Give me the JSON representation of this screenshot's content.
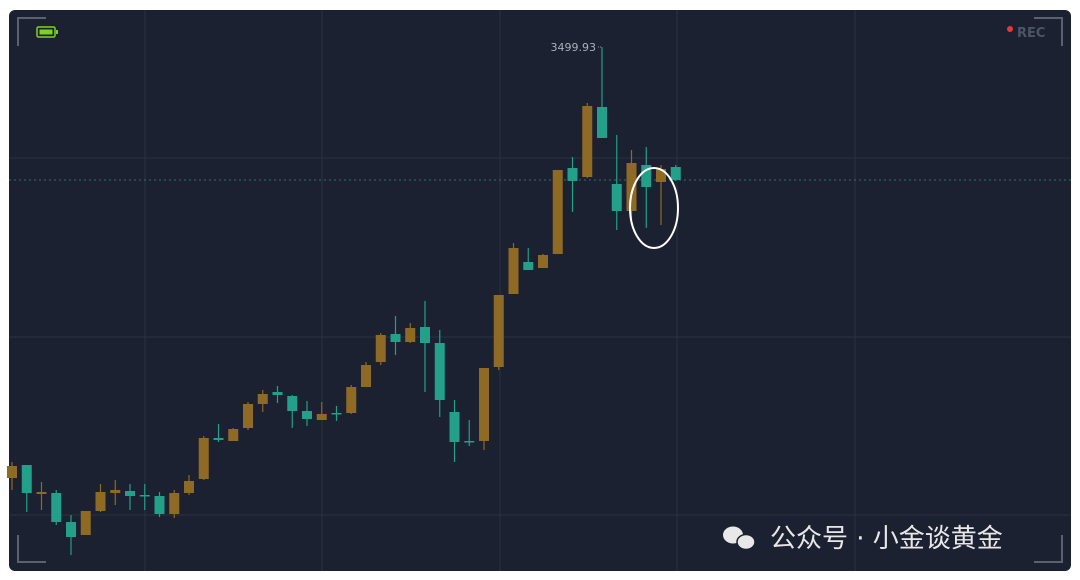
{
  "chart_data": {
    "type": "candlestick",
    "rec_label": "REC",
    "watermark": "公众号 · 小金谈黄金",
    "up_color": "#8f6a24",
    "down_color": "#22a08a",
    "ylim": [
      2454,
      3574
    ],
    "grid": true,
    "open": [
      2638,
      2664,
      2606,
      2608,
      2550,
      2524,
      2572,
      2608,
      2612,
      2604,
      2602,
      2566,
      2608,
      2636,
      2718,
      2712,
      2738,
      2786,
      2810,
      2802,
      2772,
      2754,
      2768,
      2768,
      2820,
      2870,
      2926,
      2910,
      2940,
      2908,
      2770,
      2712,
      2712,
      2860,
      3006,
      3070,
      3058,
      3086,
      3258,
      3240,
      3380,
      3226,
      3172,
      3264,
      3230,
      3260
    ],
    "high": [
      2670,
      2664,
      2630,
      2614,
      2564,
      2572,
      2626,
      2634,
      2626,
      2626,
      2610,
      2614,
      2644,
      2722,
      2746,
      2738,
      2790,
      2814,
      2822,
      2804,
      2792,
      2790,
      2782,
      2824,
      2870,
      2928,
      2962,
      2948,
      2992,
      2934,
      2794,
      2754,
      2858,
      3004,
      3108,
      3098,
      3086,
      3254,
      3280,
      3388,
      3499.93,
      3324,
      3294,
      3300,
      3264,
      3264
    ],
    "low": [
      2614,
      2570,
      2574,
      2544,
      2484,
      2524,
      2570,
      2584,
      2574,
      2574,
      2560,
      2558,
      2604,
      2634,
      2710,
      2712,
      2734,
      2770,
      2788,
      2738,
      2742,
      2754,
      2752,
      2766,
      2820,
      2864,
      2884,
      2908,
      2810,
      2760,
      2670,
      2702,
      2694,
      2854,
      3006,
      3054,
      3058,
      3086,
      3170,
      3238,
      3318,
      3134,
      3150,
      3138,
      3144,
      3232
    ],
    "close": [
      2662,
      2608,
      2610,
      2550,
      2520,
      2572,
      2610,
      2614,
      2602,
      2602,
      2566,
      2608,
      2632,
      2718,
      2714,
      2736,
      2786,
      2806,
      2804,
      2772,
      2756,
      2766,
      2766,
      2820,
      2864,
      2924,
      2910,
      2938,
      2908,
      2794,
      2710,
      2710,
      2858,
      3004,
      3098,
      3054,
      3084,
      3254,
      3232,
      3382,
      3318,
      3172,
      3268,
      3220,
      3256,
      3234
    ]
  }
}
